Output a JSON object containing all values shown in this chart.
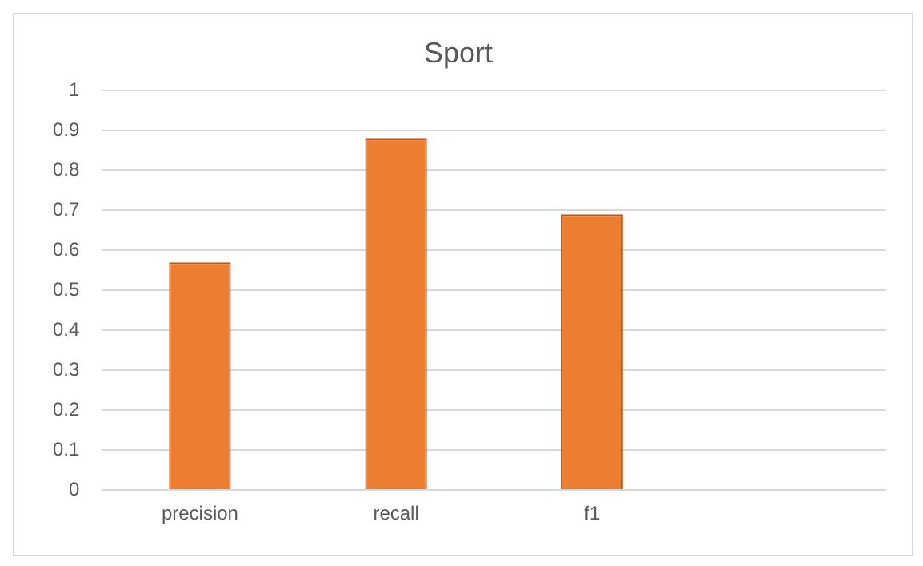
{
  "chart_data": {
    "type": "bar",
    "title": "Sport",
    "categories": [
      "precision",
      "recall",
      "f1",
      null
    ],
    "values": [
      0.57,
      0.88,
      0.69,
      null
    ],
    "color": "#ed7d31",
    "ylim": [
      0,
      1
    ],
    "yticks": [
      0,
      0.1,
      0.2,
      0.3,
      0.4,
      0.5,
      0.6,
      0.7,
      0.8,
      0.9,
      1
    ],
    "grid": "y",
    "legend": false
  }
}
